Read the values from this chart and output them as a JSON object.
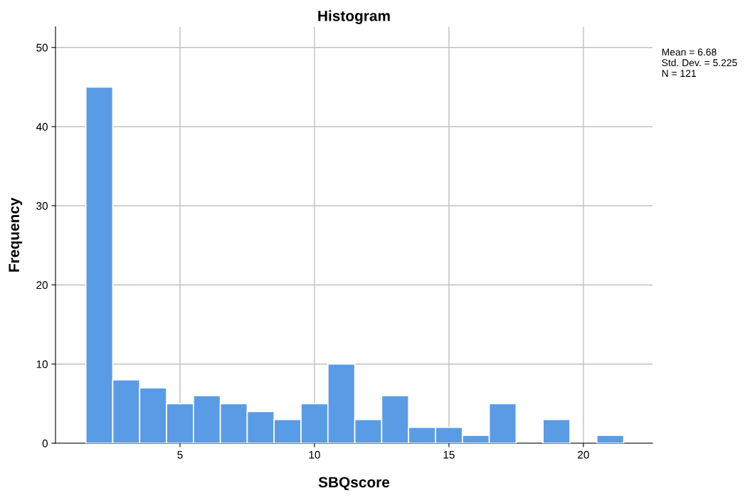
{
  "chart_data": {
    "type": "histogram",
    "title": "Histogram",
    "xlabel": "SBQscore",
    "ylabel": "Frequency",
    "bins": [
      1.5,
      2.5,
      3.5,
      4.5,
      5.5,
      6.5,
      7.5,
      8.5,
      9.5,
      10.5,
      11.5,
      12.5,
      13.5,
      14.5,
      15.5,
      16.5,
      17.5,
      18.5,
      19.5,
      20.5,
      21.5
    ],
    "values": [
      45,
      8,
      7,
      5,
      6,
      5,
      4,
      3,
      5,
      10,
      3,
      6,
      2,
      2,
      1,
      5,
      0,
      3,
      0,
      1
    ],
    "color": "#5a9be6",
    "xlim": [
      0.37,
      22.57
    ],
    "xticks": [
      5,
      10,
      15,
      20
    ],
    "ylim": [
      0,
      52.6
    ],
    "yticks": [
      0,
      10,
      20,
      30,
      40,
      50
    ],
    "grid": true,
    "annotations": [
      "Mean = 6.68\nStd. Dev. = 5.225\nN = 121"
    ]
  }
}
